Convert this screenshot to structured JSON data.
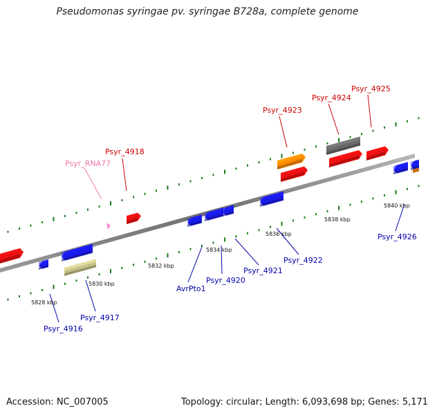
{
  "title": "Pseudomonas syringae pv. syringae B728a, complete genome",
  "footer": {
    "accession_label": "Accession:",
    "accession": "NC_007005",
    "topology_text": "Topology: circular; Length: 6,093,698 bp; Genes: 5,171"
  },
  "colors": {
    "forward_label": "#cc0000",
    "reverse_label": "#0000aa",
    "rna_label": "#ee77aa",
    "gene_red": "#ee1111",
    "gene_blue": "#1a1aee",
    "gene_orange": "#ff8c00",
    "gene_gray": "#6a6a6a",
    "gene_khaki": "#c8c28a",
    "gene_pink": "#ff88cc",
    "tick_green": "#1a7a1a",
    "backbone": "#808080"
  },
  "scale_labels": [
    "5828 kbp",
    "5830 kbp",
    "5832 kbp",
    "5834 kbp",
    "5836 kbp",
    "5838 kbp",
    "5840 kbp"
  ],
  "gene_labels": {
    "Psyr_RNA77": "Psyr_RNA77",
    "Psyr_4918": "Psyr_4918",
    "Psyr_4923": "Psyr_4923",
    "Psyr_4924": "Psyr_4924",
    "Psyr_4925": "Psyr_4925",
    "Psyr_4916": "Psyr_4916",
    "Psyr_4917": "Psyr_4917",
    "AvrPto1": "AvrPto1",
    "Psyr_4920": "Psyr_4920",
    "Psyr_4921": "Psyr_4921",
    "Psyr_4922": "Psyr_4922",
    "Psyr_4926": "Psyr_4926"
  }
}
